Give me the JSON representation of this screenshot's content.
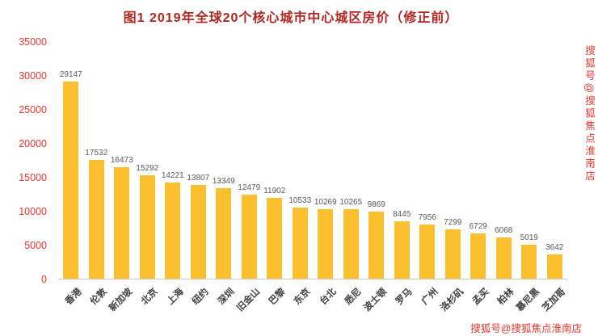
{
  "title": "图1  2019年全球20个核心城市中心城区房价（修正前）",
  "watermark": {
    "vertical": "搜狐号@搜狐焦点淮南店",
    "bottom": "搜狐号@搜狐焦点淮南店"
  },
  "colors": {
    "bar": "#FCC02E",
    "title": "#B02520",
    "ytick": "#E8372C",
    "value": "#595959",
    "category": "#3F3F3F",
    "watermark": "#E8372C",
    "baseline": "#C9C9C9"
  },
  "chart_data": {
    "type": "bar",
    "title": "图1  2019年全球20个核心城市中心城区房价（修正前）",
    "categories": [
      "香港",
      "伦敦",
      "新加坡",
      "北京",
      "上海",
      "纽约",
      "深圳",
      "旧金山",
      "巴黎",
      "东京",
      "台北",
      "悉尼",
      "波士顿",
      "罗马",
      "广州",
      "洛杉矶",
      "孟买",
      "柏林",
      "慕尼黑",
      "芝加哥"
    ],
    "values": [
      29147,
      17532,
      16473,
      15292,
      14221,
      13807,
      13349,
      12479,
      11902,
      10533,
      10269,
      10265,
      9869,
      8445,
      7956,
      7299,
      6729,
      6068,
      5019,
      3642
    ],
    "xlabel": "",
    "ylabel": "",
    "ylim": [
      0,
      35000
    ],
    "yticks": [
      0,
      5000,
      10000,
      15000,
      20000,
      25000,
      30000,
      35000
    ],
    "grid": false,
    "legend": "none",
    "bar_color": "#FCC02E"
  }
}
